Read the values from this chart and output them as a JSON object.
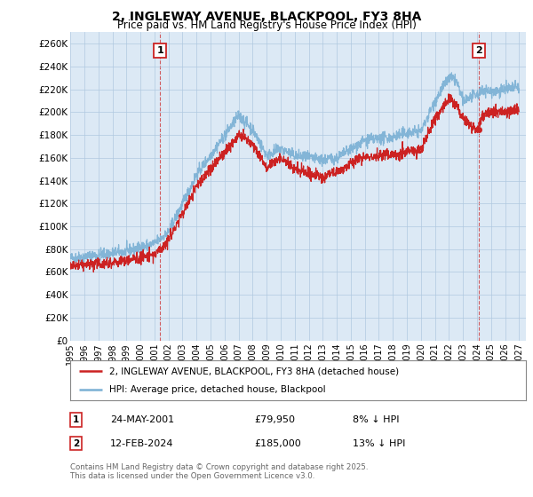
{
  "title": "2, INGLEWAY AVENUE, BLACKPOOL, FY3 8HA",
  "subtitle": "Price paid vs. HM Land Registry's House Price Index (HPI)",
  "ylim": [
    0,
    270000
  ],
  "xlim_start": 1995.0,
  "xlim_end": 2027.5,
  "yticks": [
    0,
    20000,
    40000,
    60000,
    80000,
    100000,
    120000,
    140000,
    160000,
    180000,
    200000,
    220000,
    240000,
    260000
  ],
  "ytick_labels": [
    "£0",
    "£20K",
    "£40K",
    "£60K",
    "£80K",
    "£100K",
    "£120K",
    "£140K",
    "£160K",
    "£180K",
    "£200K",
    "£220K",
    "£240K",
    "£260K"
  ],
  "hpi_color": "#7ab0d4",
  "price_color": "#cc2222",
  "chart_bg": "#dce9f5",
  "sale1_year": 2001.39,
  "sale1_price": 79950,
  "sale2_year": 2024.12,
  "sale2_price": 185000,
  "sale1_label": "1",
  "sale2_label": "2",
  "legend_label_price": "2, INGLEWAY AVENUE, BLACKPOOL, FY3 8HA (detached house)",
  "legend_label_hpi": "HPI: Average price, detached house, Blackpool",
  "footer1": "Contains HM Land Registry data © Crown copyright and database right 2025.",
  "footer2": "This data is licensed under the Open Government Licence v3.0.",
  "table_row1": [
    "1",
    "24-MAY-2001",
    "£79,950",
    "8% ↓ HPI"
  ],
  "table_row2": [
    "2",
    "12-FEB-2024",
    "£185,000",
    "13% ↓ HPI"
  ],
  "background_color": "#ffffff",
  "grid_color": "#b0c8e0",
  "hpi_anchors_x": [
    1995,
    1997,
    1999,
    2001,
    2002,
    2004,
    2007,
    2008,
    2009,
    2010,
    2011,
    2013,
    2014,
    2016,
    2018,
    2019,
    2020,
    2021,
    2022,
    2022.5,
    2023,
    2024,
    2024.5,
    2025,
    2026,
    2027
  ],
  "hpi_anchors_y": [
    72000,
    75000,
    78000,
    85000,
    95000,
    145000,
    197000,
    185000,
    162000,
    168000,
    162000,
    158000,
    160000,
    175000,
    178000,
    182000,
    183000,
    210000,
    230000,
    228000,
    210000,
    215000,
    220000,
    218000,
    220000,
    222000
  ],
  "price_anchors_x": [
    1995,
    1997,
    1999,
    2001,
    2002,
    2004,
    2007,
    2008,
    2009,
    2010,
    2011,
    2013,
    2014,
    2016,
    2018,
    2019,
    2020,
    2021,
    2022,
    2022.5,
    2023,
    2024,
    2024.5,
    2025,
    2026,
    2027
  ],
  "price_anchors_y": [
    65000,
    67000,
    70000,
    75000,
    88000,
    135000,
    180000,
    172000,
    152000,
    160000,
    150000,
    143000,
    148000,
    161000,
    163000,
    165000,
    167000,
    195000,
    212000,
    207000,
    195000,
    185000,
    198000,
    200000,
    200000,
    202000
  ]
}
